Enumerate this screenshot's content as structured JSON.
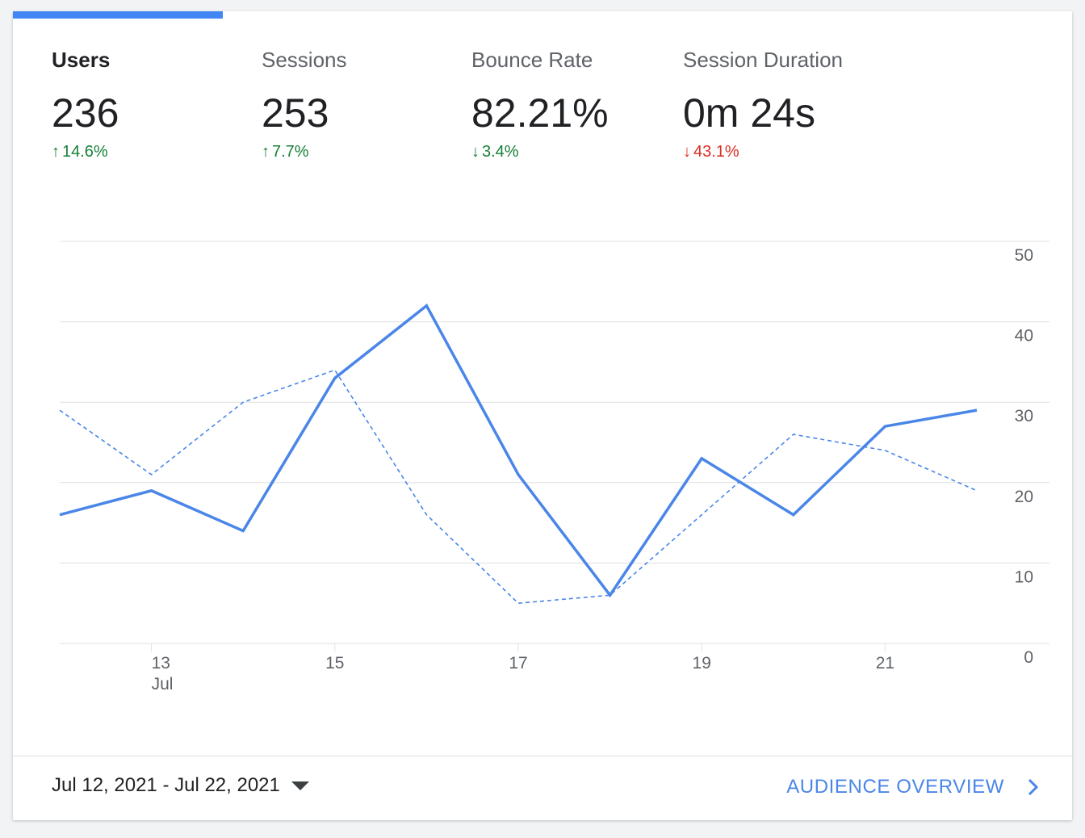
{
  "metrics": [
    {
      "label": "Users",
      "value": "236",
      "change": "14.6%",
      "direction": "up",
      "change_color": "#188038"
    },
    {
      "label": "Sessions",
      "value": "253",
      "change": "7.7%",
      "direction": "up",
      "change_color": "#188038"
    },
    {
      "label": "Bounce Rate",
      "value": "82.21%",
      "change": "3.4%",
      "direction": "down",
      "change_color": "#188038"
    },
    {
      "label": "Session Duration",
      "value": "0m 24s",
      "change": "43.1%",
      "direction": "down",
      "change_color": "#d93025"
    }
  ],
  "icons": {
    "up_arrow": "↑",
    "down_arrow": "↓",
    "dropdown": "caret-down-icon",
    "chevron": "chevron-right-icon"
  },
  "footer": {
    "date_range": "Jul 12, 2021 - Jul 22, 2021",
    "link_label": "AUDIENCE OVERVIEW"
  },
  "colors": {
    "accent": "#4285f4",
    "line": "#4a86e8",
    "grid": "#e0e0e0"
  },
  "chart_data": {
    "type": "line",
    "x": [
      "2021-07-12",
      "2021-07-13",
      "2021-07-14",
      "2021-07-15",
      "2021-07-16",
      "2021-07-17",
      "2021-07-18",
      "2021-07-19",
      "2021-07-20",
      "2021-07-21",
      "2021-07-22"
    ],
    "x_tick_labels": [
      {
        "x": "2021-07-13",
        "label": "13",
        "sublabel": "Jul"
      },
      {
        "x": "2021-07-15",
        "label": "15",
        "sublabel": ""
      },
      {
        "x": "2021-07-17",
        "label": "17",
        "sublabel": ""
      },
      {
        "x": "2021-07-19",
        "label": "19",
        "sublabel": ""
      },
      {
        "x": "2021-07-21",
        "label": "21",
        "sublabel": ""
      }
    ],
    "series": [
      {
        "style": "solid",
        "values": [
          16,
          19,
          14,
          33,
          42,
          21,
          6,
          23,
          16,
          27,
          29
        ]
      },
      {
        "style": "dashed",
        "values": [
          29,
          21,
          30,
          34,
          16,
          5,
          6,
          16,
          26,
          24,
          19
        ]
      }
    ],
    "y_ticks": [
      0,
      10,
      20,
      30,
      40,
      50
    ],
    "ylim": [
      0,
      50
    ],
    "y_axis_side": "right",
    "grid": true
  }
}
